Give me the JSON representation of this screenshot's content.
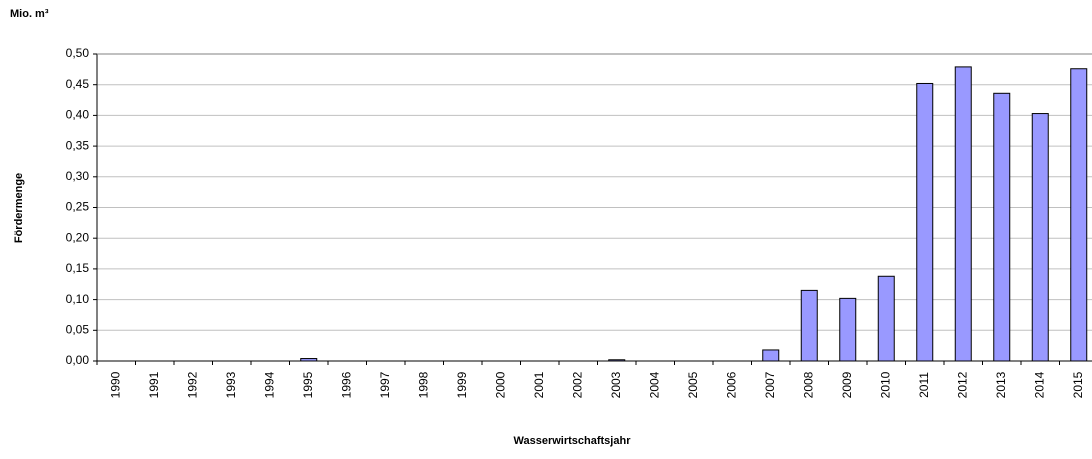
{
  "chart_data": {
    "type": "bar",
    "unit_label": "Mio. m³",
    "y_label": "Fördermenge",
    "x_label": "Wasserwirtschaftsjahr",
    "categories": [
      "1990",
      "1991",
      "1992",
      "1993",
      "1994",
      "1995",
      "1996",
      "1997",
      "1998",
      "1999",
      "2000",
      "2001",
      "2002",
      "2003",
      "2004",
      "2005",
      "2006",
      "2007",
      "2008",
      "2009",
      "2010",
      "2011",
      "2012",
      "2013",
      "2014",
      "2015"
    ],
    "values": [
      0,
      0,
      0,
      0,
      0,
      0.004,
      0,
      0,
      0,
      0,
      0,
      0,
      0,
      0.002,
      0,
      0,
      0,
      0.018,
      0.115,
      0.102,
      0.138,
      0.452,
      0.479,
      0.436,
      0.403,
      0.476
    ],
    "color": "#9999ff",
    "ylim": [
      0,
      0.5
    ],
    "yticks": [
      {
        "value": 0,
        "label": "0,00"
      },
      {
        "value": 0.05,
        "label": "0,05"
      },
      {
        "value": 0.1,
        "label": "0,10"
      },
      {
        "value": 0.15,
        "label": "0,15"
      },
      {
        "value": 0.2,
        "label": "0,20"
      },
      {
        "value": 0.25,
        "label": "0,25"
      },
      {
        "value": 0.3,
        "label": "0,30"
      },
      {
        "value": 0.35,
        "label": "0,35"
      },
      {
        "value": 0.4,
        "label": "0,40"
      },
      {
        "value": 0.45,
        "label": "0,45"
      },
      {
        "value": 0.5,
        "label": "0,50"
      }
    ],
    "grid": true
  }
}
